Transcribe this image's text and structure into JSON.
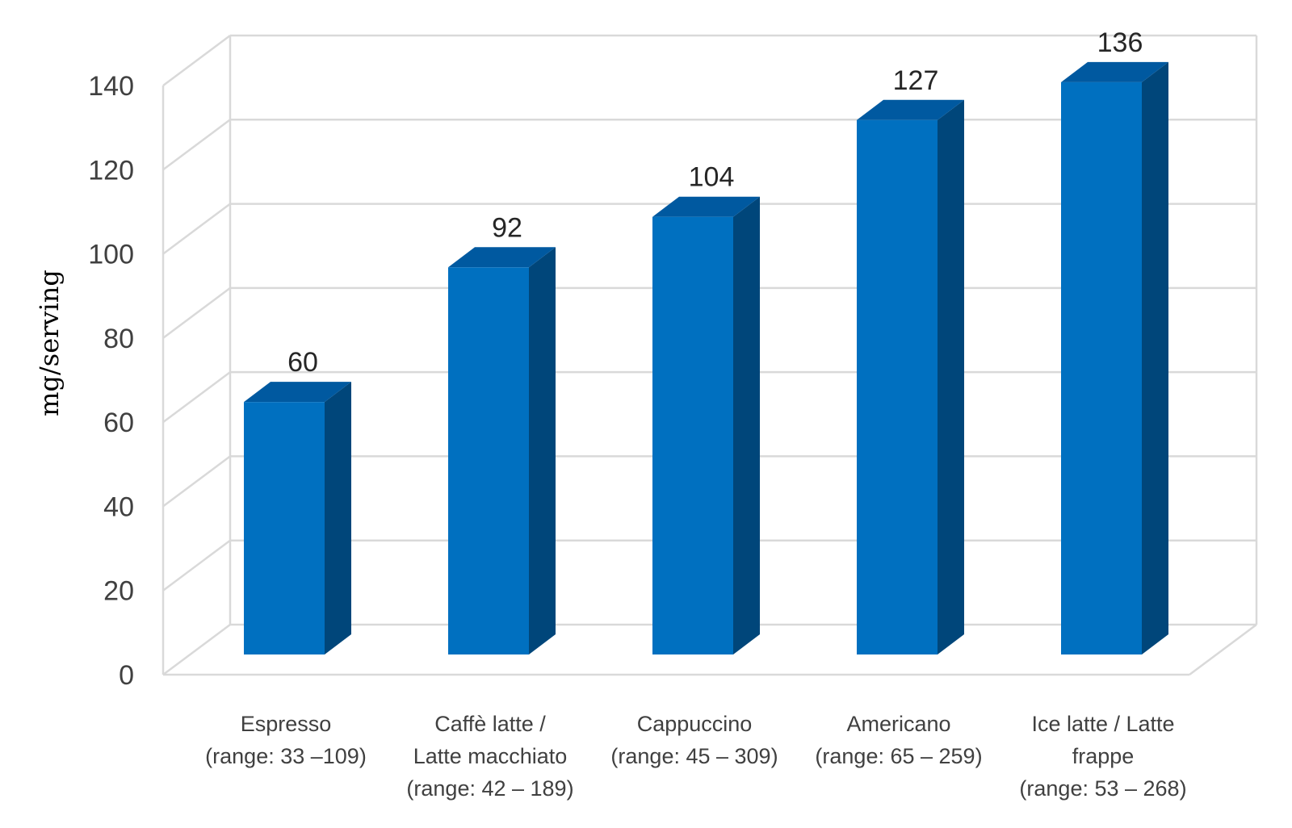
{
  "chart_data": {
    "type": "bar",
    "style": "3d-column",
    "title": "",
    "xlabel": "",
    "ylabel": "mg/serving",
    "ylim": [
      0,
      140
    ],
    "ytick_step": 20,
    "yticks": [
      "0",
      "20",
      "40",
      "60",
      "80",
      "100",
      "120",
      "140"
    ],
    "grid": true,
    "categories": [
      [
        "Espresso",
        "(range: 33 –109)"
      ],
      [
        "Caffè latte /",
        "Latte macchiato",
        "(range: 42 – 189)"
      ],
      [
        "Cappuccino",
        "(range: 45 – 309)"
      ],
      [
        "Americano",
        "(range: 65 – 259)"
      ],
      [
        "Ice latte / Latte",
        "frappe",
        "(range: 53 – 268)"
      ]
    ],
    "values": [
      60,
      92,
      104,
      127,
      136
    ],
    "data_labels": [
      "60",
      "92",
      "104",
      "127",
      "136"
    ],
    "colors": {
      "bar_front": "#0070C0",
      "bar_side": "#00467A",
      "bar_top": "#0059A0",
      "grid": "#D9D9D9",
      "axis_text": "#404040"
    }
  }
}
